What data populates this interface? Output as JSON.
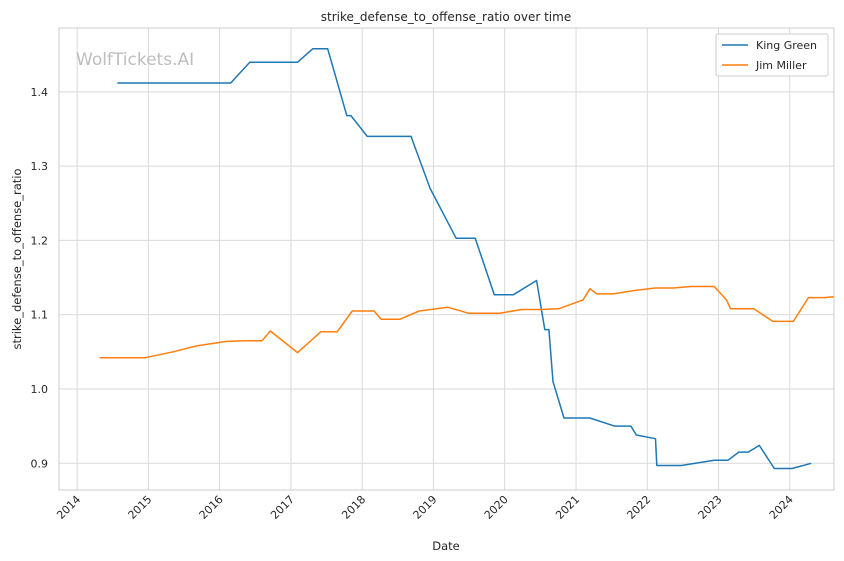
{
  "chart_data": {
    "type": "line",
    "title": "strike_defense_to_offense_ratio over time",
    "xlabel": "Date",
    "ylabel": "strike_defense_to_offense_ratio",
    "watermark": "WolfTickets.AI",
    "x_tick_labels": [
      "2014",
      "2015",
      "2016",
      "2017",
      "2018",
      "2019",
      "2020",
      "2021",
      "2022",
      "2023",
      "2024"
    ],
    "y_tick_labels": [
      "0.9",
      "1.0",
      "1.1",
      "1.2",
      "1.3",
      "1.4"
    ],
    "y_ticks": [
      0.9,
      1.0,
      1.1,
      1.2,
      1.3,
      1.4
    ],
    "xlim": [
      "2013-09-30",
      "2024-08-15"
    ],
    "ylim": [
      0.864,
      1.486
    ],
    "grid": true,
    "legend_position": "top-right",
    "series": [
      {
        "name": "King Green",
        "color": "#1f77b4",
        "points": [
          [
            "2014-07-26",
            1.412
          ],
          [
            "2016-02-27",
            1.412
          ],
          [
            "2016-06-04",
            1.44
          ],
          [
            "2017-02-04",
            1.44
          ],
          [
            "2017-04-22",
            1.458
          ],
          [
            "2017-07-08",
            1.458
          ],
          [
            "2017-10-14",
            1.368
          ],
          [
            "2017-11-04",
            1.368
          ],
          [
            "2018-01-27",
            1.34
          ],
          [
            "2018-09-08",
            1.34
          ],
          [
            "2018-12-15",
            1.27
          ],
          [
            "2019-04-27",
            1.203
          ],
          [
            "2019-08-03",
            1.203
          ],
          [
            "2019-11-09",
            1.127
          ],
          [
            "2020-02-15",
            1.127
          ],
          [
            "2020-06-13",
            1.146
          ],
          [
            "2020-07-25",
            1.08
          ],
          [
            "2020-08-15",
            1.08
          ],
          [
            "2020-09-05",
            1.01
          ],
          [
            "2020-10-31",
            0.961
          ],
          [
            "2021-03-13",
            0.961
          ],
          [
            "2021-07-17",
            0.95
          ],
          [
            "2021-10-09",
            0.95
          ],
          [
            "2021-11-06",
            0.938
          ],
          [
            "2022-02-12",
            0.933
          ],
          [
            "2022-02-19",
            0.897
          ],
          [
            "2022-06-25",
            0.897
          ],
          [
            "2022-12-10",
            0.904
          ],
          [
            "2023-02-18",
            0.904
          ],
          [
            "2023-04-15",
            0.915
          ],
          [
            "2023-06-03",
            0.915
          ],
          [
            "2023-07-29",
            0.924
          ],
          [
            "2023-10-14",
            0.893
          ],
          [
            "2024-01-13",
            0.893
          ],
          [
            "2024-04-20",
            0.9
          ]
        ]
      },
      {
        "name": "Jim Miller",
        "color": "#ff7f0e",
        "points": [
          [
            "2014-04-26",
            1.042
          ],
          [
            "2014-12-13",
            1.042
          ],
          [
            "2015-05-09",
            1.05
          ],
          [
            "2015-09-05",
            1.058
          ],
          [
            "2016-02-06",
            1.064
          ],
          [
            "2016-05-14",
            1.065
          ],
          [
            "2016-08-06",
            1.065
          ],
          [
            "2016-09-17",
            1.078
          ],
          [
            "2017-02-04",
            1.049
          ],
          [
            "2017-06-03",
            1.077
          ],
          [
            "2017-08-26",
            1.077
          ],
          [
            "2017-11-11",
            1.105
          ],
          [
            "2018-03-03",
            1.105
          ],
          [
            "2018-04-07",
            1.094
          ],
          [
            "2018-07-14",
            1.094
          ],
          [
            "2018-10-20",
            1.105
          ],
          [
            "2019-03-16",
            1.11
          ],
          [
            "2019-06-29",
            1.102
          ],
          [
            "2019-12-07",
            1.102
          ],
          [
            "2020-03-28",
            1.107
          ],
          [
            "2020-06-27",
            1.107
          ],
          [
            "2020-10-03",
            1.108
          ],
          [
            "2021-02-06",
            1.12
          ],
          [
            "2021-03-13",
            1.135
          ],
          [
            "2021-04-17",
            1.128
          ],
          [
            "2021-07-10",
            1.128
          ],
          [
            "2021-11-06",
            1.133
          ],
          [
            "2022-02-12",
            1.136
          ],
          [
            "2022-05-14",
            1.136
          ],
          [
            "2022-08-13",
            1.138
          ],
          [
            "2022-12-10",
            1.138
          ],
          [
            "2023-02-11",
            1.12
          ],
          [
            "2023-03-04",
            1.108
          ],
          [
            "2023-07-01",
            1.108
          ],
          [
            "2023-10-07",
            1.091
          ],
          [
            "2024-01-20",
            1.091
          ],
          [
            "2024-04-06",
            1.123
          ],
          [
            "2024-06-29",
            1.123
          ],
          [
            "2024-08-03",
            1.124
          ],
          [
            "2024-08-10",
            1.124
          ],
          [
            "2024-08-12",
            1.123
          ]
        ]
      }
    ]
  }
}
